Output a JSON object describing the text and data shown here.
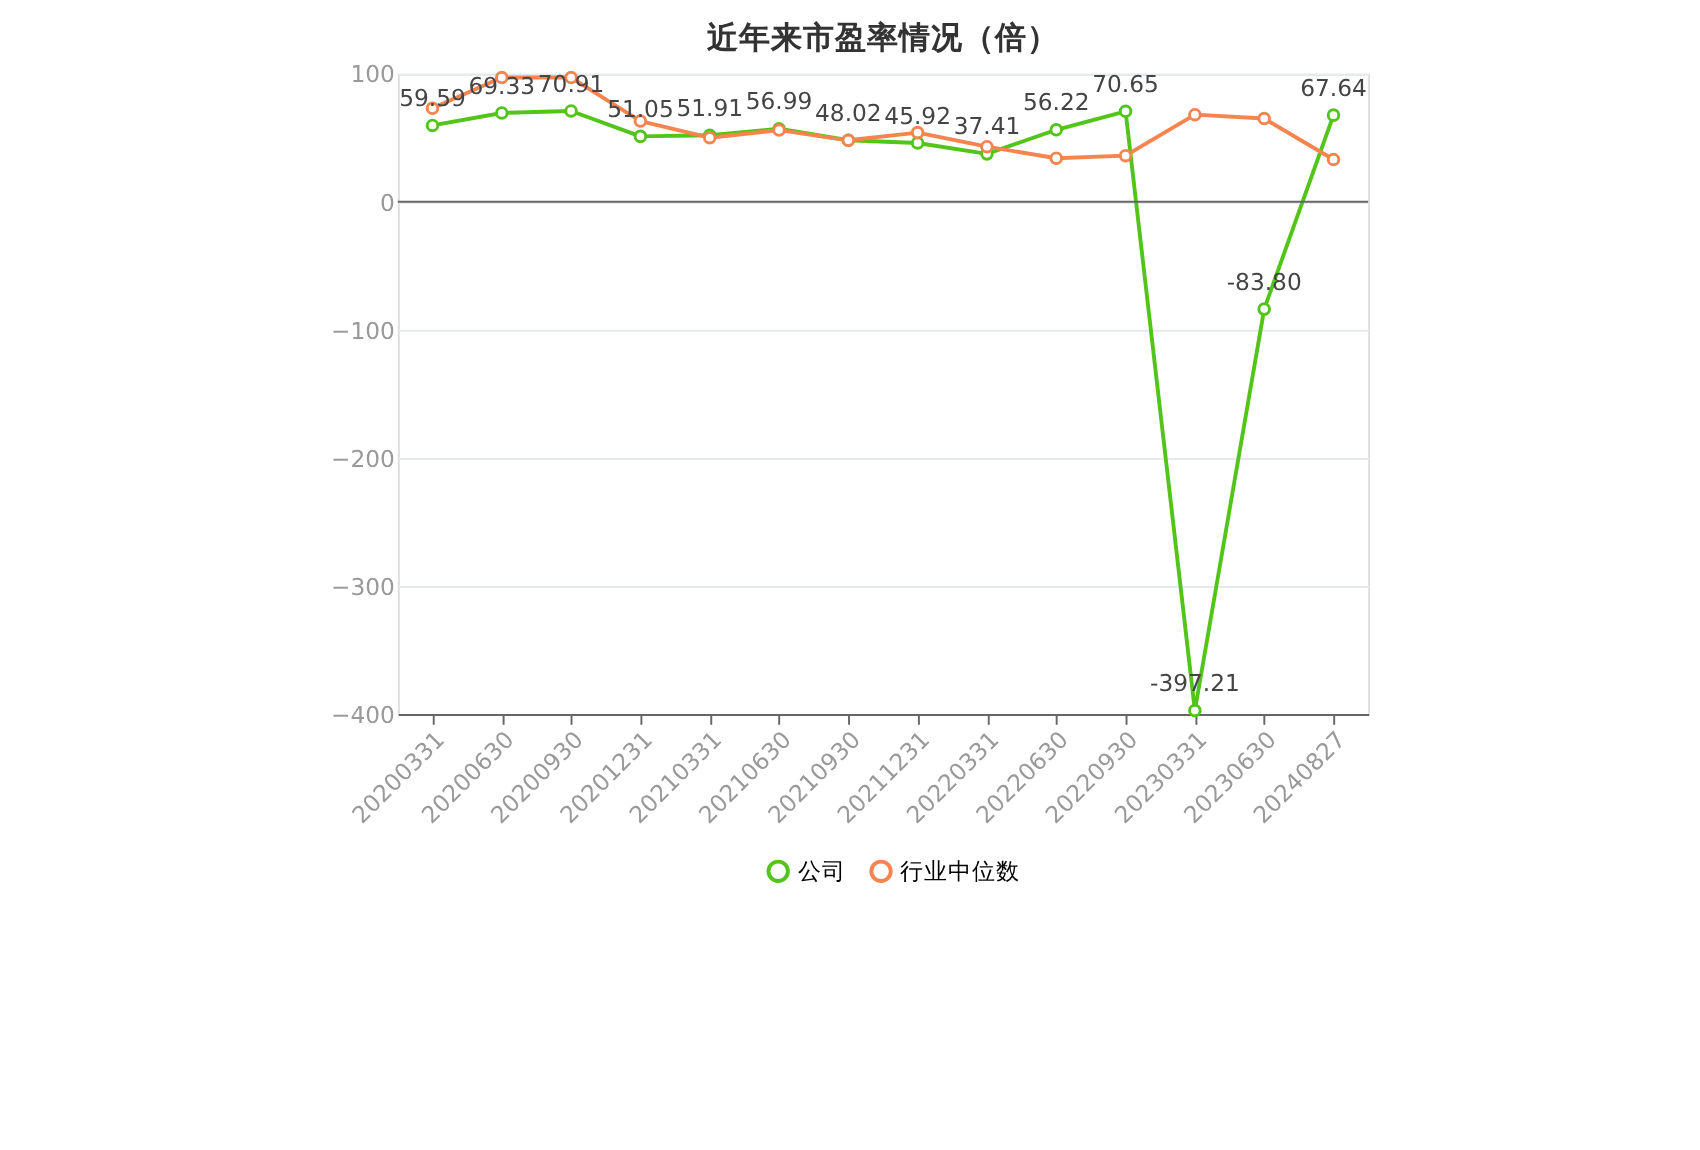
{
  "chart_data": {
    "type": "line",
    "title": "近年来市盈率情况（倍）",
    "categories": [
      "20200331",
      "20200630",
      "20200930",
      "20201231",
      "20210331",
      "20210630",
      "20210930",
      "20211231",
      "20220331",
      "20220630",
      "20220930",
      "20230331",
      "20230630",
      "20240827"
    ],
    "series": [
      {
        "name": "公司",
        "color": "#52c41a",
        "values": [
          59.59,
          69.33,
          70.91,
          51.05,
          51.91,
          56.99,
          48.02,
          45.92,
          37.41,
          56.22,
          70.65,
          -397.21,
          -83.8,
          67.64
        ],
        "value_labels": [
          "59.59",
          "69.33",
          "70.91",
          "51.05",
          "51.91",
          "56.99",
          "48.02",
          "45.92",
          "37.41",
          "56.22",
          "70.65",
          "-397.21",
          "-83.80",
          "67.64"
        ]
      },
      {
        "name": "行业中位数",
        "color": "#f5844f",
        "values": [
          73,
          97,
          97,
          63,
          50,
          56,
          48,
          54,
          43,
          34,
          36,
          68,
          65,
          33
        ]
      }
    ],
    "ylim": [
      -400,
      100
    ],
    "yticks": [
      -400,
      -300,
      -200,
      -100,
      0,
      100
    ],
    "grid": "y",
    "legend": "bottom",
    "marker": "circle",
    "line_style": "solid"
  }
}
